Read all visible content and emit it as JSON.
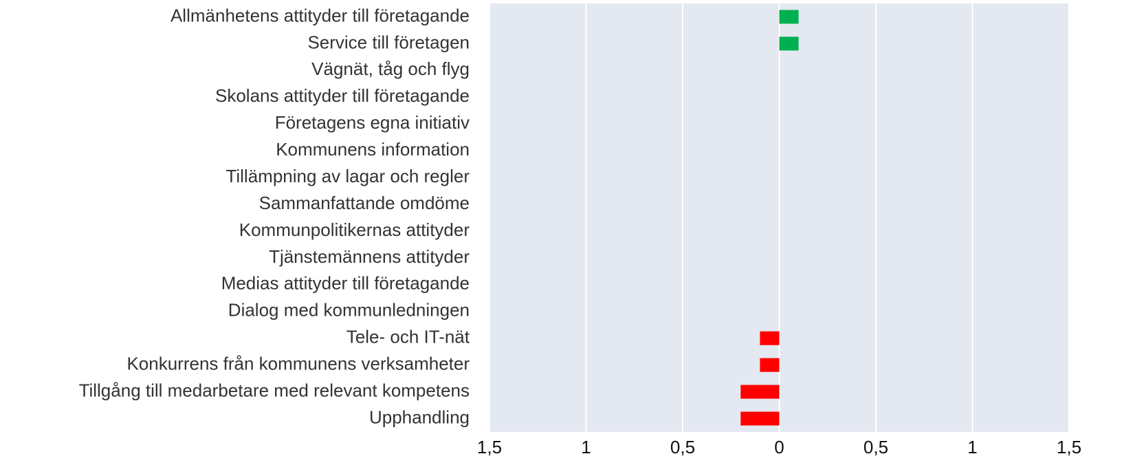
{
  "chart_data": {
    "type": "barh",
    "categories": [
      "Allmänhetens attityder till företagande",
      "Service till företagen",
      "Vägnät, tåg och flyg",
      "Skolans attityder till företagande",
      "Företagens egna initiativ",
      "Kommunens information",
      "Tillämpning av lagar och regler",
      "Sammanfattande omdöme",
      "Kommunpolitikernas attityder",
      "Tjänstemännens attityder",
      "Medias attityder till företagande",
      "Dialog med kommunledningen",
      "Tele- och IT-nät",
      "Konkurrens från kommunens verksamheter",
      "Tillgång till medarbetare med relevant kompetens",
      "Upphandling"
    ],
    "values": [
      0.1,
      0.1,
      0,
      0,
      0,
      0,
      0,
      0,
      0,
      0,
      0,
      0,
      -0.1,
      -0.1,
      -0.2,
      -0.2
    ],
    "color_positive": "#00b050",
    "color_negative": "#ff0000",
    "xlim": [
      -1.5,
      1.5
    ],
    "xticks": [
      {
        "value": -1.5,
        "label": "1,5"
      },
      {
        "value": -1,
        "label": "1"
      },
      {
        "value": -0.5,
        "label": "0,5"
      },
      0,
      {
        "value": 0.5,
        "label": "0,5"
      },
      1,
      {
        "value": 1.5,
        "label": "1,5"
      }
    ],
    "grid": true
  }
}
